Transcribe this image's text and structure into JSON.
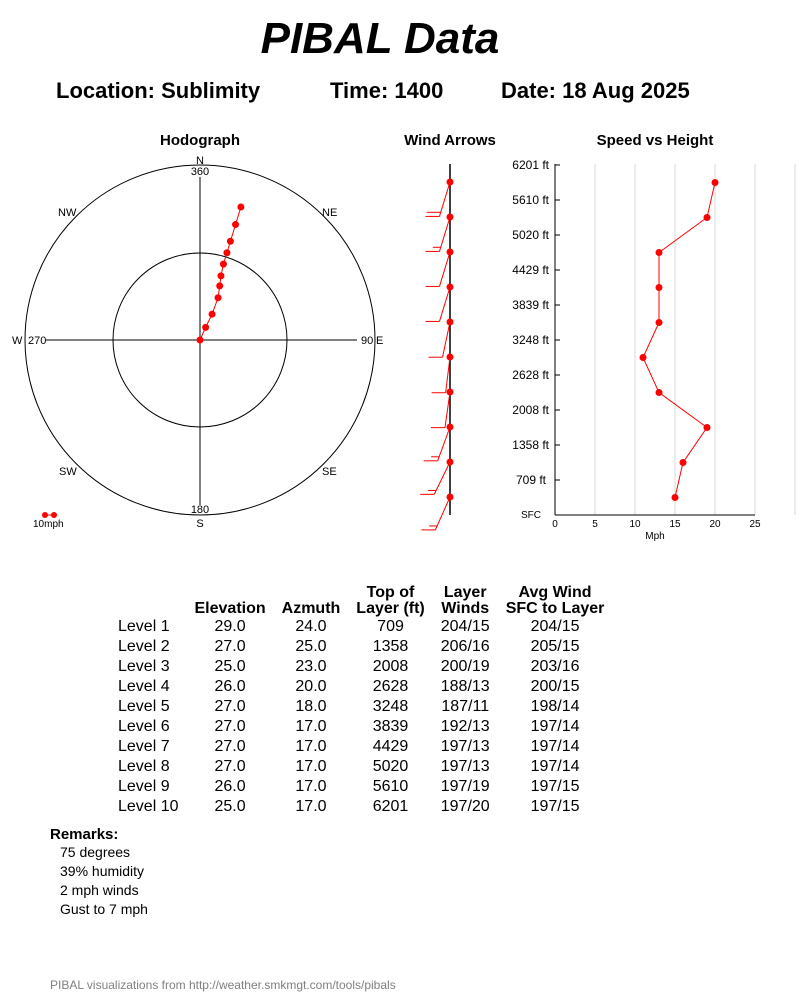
{
  "title": "PIBAL Data",
  "header": {
    "location": "Location: Sublimity",
    "time": "Time: 1400",
    "date": "Date: 18 Aug 2025"
  },
  "panels": {
    "hodograph": "Hodograph",
    "arrows": "Wind Arrows",
    "speed": "Speed vs Height"
  },
  "hodograph": {
    "compass": {
      "N": "N",
      "S": "S",
      "E": "E",
      "W": "W",
      "NE": "NE",
      "NW": "NW",
      "SE": "SE",
      "SW": "SW"
    },
    "deg": {
      "n": "360",
      "e": "90",
      "s": "180",
      "w": "270"
    },
    "scale_label": "10mph",
    "color": "#ff0000"
  },
  "chart_data": {
    "type": "line",
    "title": "Speed vs Height",
    "xlabel": "Mph",
    "xlim": [
      0,
      25
    ],
    "xticks": [
      "0",
      "5",
      "10",
      "15",
      "20",
      "25"
    ],
    "yticks": [
      "SFC",
      "709 ft",
      "1358 ft",
      "2008 ft",
      "2628 ft",
      "3248 ft",
      "3839 ft",
      "4429 ft",
      "5020 ft",
      "5610 ft",
      "6201 ft"
    ],
    "levels": [
      "Level 1",
      "Level 2",
      "Level 3",
      "Level 4",
      "Level 5",
      "Level 6",
      "Level 7",
      "Level 8",
      "Level 9",
      "Level 10"
    ],
    "speeds": [
      15,
      16,
      19,
      13,
      11,
      13,
      13,
      13,
      19,
      20
    ],
    "directions": [
      204,
      206,
      200,
      188,
      187,
      192,
      197,
      197,
      197,
      197
    ],
    "grid": true,
    "color": "#ff0000"
  },
  "table": {
    "headers": [
      "",
      "Elevation",
      "Azmuth",
      "Top of\nLayer (ft)",
      "Layer\nWinds",
      "Avg Wind\nSFC to Layer"
    ],
    "rows": [
      [
        "Level 1",
        "29.0",
        "24.0",
        "709",
        "204/15",
        "204/15"
      ],
      [
        "Level 2",
        "27.0",
        "25.0",
        "1358",
        "206/16",
        "205/15"
      ],
      [
        "Level 3",
        "25.0",
        "23.0",
        "2008",
        "200/19",
        "203/16"
      ],
      [
        "Level 4",
        "26.0",
        "20.0",
        "2628",
        "188/13",
        "200/15"
      ],
      [
        "Level 5",
        "27.0",
        "18.0",
        "3248",
        "187/11",
        "198/14"
      ],
      [
        "Level 6",
        "27.0",
        "17.0",
        "3839",
        "192/13",
        "197/14"
      ],
      [
        "Level 7",
        "27.0",
        "17.0",
        "4429",
        "197/13",
        "197/14"
      ],
      [
        "Level 8",
        "27.0",
        "17.0",
        "5020",
        "197/13",
        "197/14"
      ],
      [
        "Level 9",
        "26.0",
        "17.0",
        "5610",
        "197/19",
        "197/15"
      ],
      [
        "Level 10",
        "25.0",
        "17.0",
        "6201",
        "197/20",
        "197/15"
      ]
    ]
  },
  "remarks": {
    "label": "Remarks:",
    "lines": [
      "75 degrees",
      "39% humidity",
      "2 mph winds",
      "Gust to 7 mph"
    ]
  },
  "footer": "PIBAL visualizations from http://weather.smkmgt.com/tools/pibals"
}
